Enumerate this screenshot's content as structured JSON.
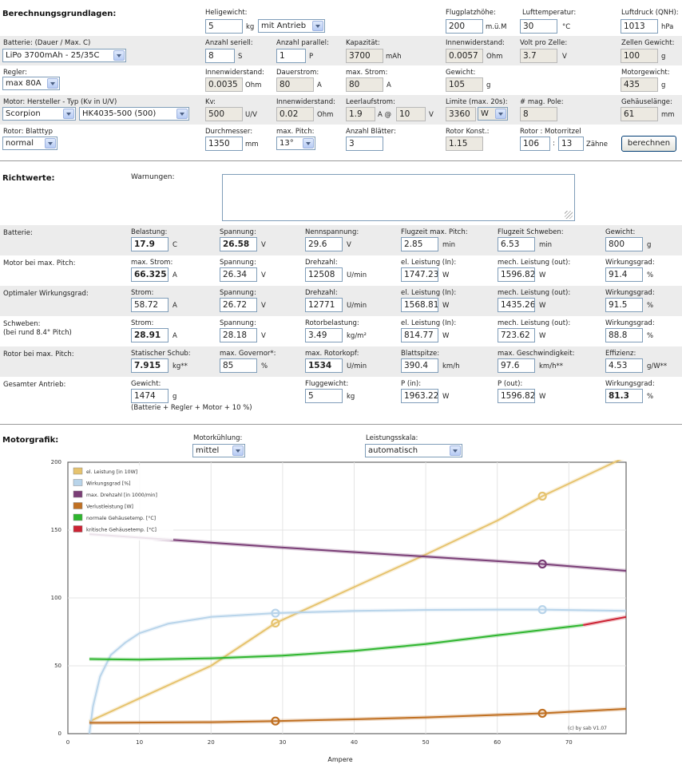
{
  "basics": {
    "title": "Berechnungsgrundlagen:",
    "heligewicht": {
      "label": "Heligewicht:",
      "value": "5",
      "unit": "kg",
      "select": "mit Antrieb"
    },
    "flugplatzhoehe": {
      "label": "Flugplatzhöhe:",
      "value": "200",
      "unit": "m.ü.M"
    },
    "lufttemperatur": {
      "label": "Lufttemperatur:",
      "value": "30",
      "unit": "°C"
    },
    "luftdruck": {
      "label": "Luftdruck (QNH):",
      "value": "1013",
      "unit": "hPa"
    },
    "batterie": {
      "label": "Batterie: (Dauer / Max. C)",
      "select": "LiPo 3700mAh - 25/35C"
    },
    "seriell": {
      "label": "Anzahl seriell:",
      "value": "8",
      "unit": "S"
    },
    "parallel": {
      "label": "Anzahl parallel:",
      "value": "1",
      "unit": "P"
    },
    "kapazitaet": {
      "label": "Kapazität:",
      "value": "3700",
      "unit": "mAh"
    },
    "innenwiderstand_bat": {
      "label": "Innenwiderstand:",
      "value": "0.0057",
      "unit": "Ohm"
    },
    "volt_pro_zelle": {
      "label": "Volt pro Zelle:",
      "value": "3.7",
      "unit": "V"
    },
    "zellen_gewicht": {
      "label": "Zellen Gewicht:",
      "value": "100",
      "unit": "g"
    },
    "regler": {
      "label": "Regler:",
      "select": "max 80A"
    },
    "innenwiderstand_reg": {
      "label": "Innenwiderstand:",
      "value": "0.0035",
      "unit": "Ohm"
    },
    "dauerstrom": {
      "label": "Dauerstrom:",
      "value": "80",
      "unit": "A"
    },
    "max_strom": {
      "label": "max. Strom:",
      "value": "80",
      "unit": "A"
    },
    "regler_gewicht": {
      "label": "Gewicht:",
      "value": "105",
      "unit": "g"
    },
    "motorgewicht": {
      "label": "Motorgewicht:",
      "value": "435",
      "unit": "g"
    },
    "motor": {
      "label": "Motor: Hersteller - Typ (Kv in U/V)",
      "hersteller": "Scorpion",
      "typ": "HK4035-500 (500)"
    },
    "kv": {
      "label": "Kv:",
      "value": "500",
      "unit": "U/V"
    },
    "innenwiderstand_mot": {
      "label": "Innenwiderstand:",
      "value": "0.02",
      "unit": "Ohm"
    },
    "leerlaufstrom": {
      "label": "Leerlaufstrom:",
      "value": "1.9",
      "at": "A @",
      "volt": "10",
      "unit": "V"
    },
    "limite": {
      "label": "Limite (max. 20s):",
      "value": "3360",
      "select": "W"
    },
    "pole": {
      "label": "# mag. Pole:",
      "value": "8"
    },
    "gehaeuselaenge": {
      "label": "Gehäuselänge:",
      "value": "61",
      "unit": "mm"
    },
    "blatttyp": {
      "label": "Rotor: Blatttyp",
      "select": "normal"
    },
    "durchmesser": {
      "label": "Durchmesser:",
      "value": "1350",
      "unit": "mm"
    },
    "max_pitch": {
      "label": "max. Pitch:",
      "select": "13°"
    },
    "anzahl_blaetter": {
      "label": "Anzahl Blätter:",
      "value": "3"
    },
    "rotor_konst": {
      "label": "Rotor Konst.:",
      "value": "1.15"
    },
    "rotor_motorritzel": {
      "label": "Rotor : Motorritzel",
      "rotor": "106",
      "sep": ":",
      "ritzel": "13",
      "unit": "Zähne"
    },
    "berechnen": "berechnen"
  },
  "results": {
    "title": "Richtwerte:",
    "warnungen_label": "Warnungen:",
    "rows": [
      {
        "name": "Batterie:",
        "cells": [
          {
            "label": "Belastung:",
            "value": "17.9",
            "unit": "C",
            "bold": true
          },
          {
            "label": "Spannung:",
            "value": "26.58",
            "unit": "V",
            "bold": true
          },
          {
            "label": "Nennspannung:",
            "value": "29.6",
            "unit": "V"
          },
          {
            "label": "Flugzeit max. Pitch:",
            "value": "2.85",
            "unit": "min"
          },
          {
            "label": "Flugzeit Schweben:",
            "value": "6.53",
            "unit": "min"
          },
          {
            "label": "Gewicht:",
            "value": "800",
            "unit": "g"
          }
        ]
      },
      {
        "name": "Motor bei max. Pitch:",
        "cells": [
          {
            "label": "max. Strom:",
            "value": "66.325",
            "unit": "A",
            "bold": true
          },
          {
            "label": "Spannung:",
            "value": "26.34",
            "unit": "V"
          },
          {
            "label": "Drehzahl:",
            "value": "12508",
            "unit": "U/min"
          },
          {
            "label": "el. Leistung (In):",
            "value": "1747.23",
            "unit": "W"
          },
          {
            "label": "mech. Leistung (out):",
            "value": "1596.82",
            "unit": "W"
          },
          {
            "label": "Wirkungsgrad:",
            "value": "91.4",
            "unit": "%"
          }
        ]
      },
      {
        "name": "Optimaler Wirkungsgrad:",
        "cells": [
          {
            "label": "Strom:",
            "value": "58.72",
            "unit": "A"
          },
          {
            "label": "Spannung:",
            "value": "26.72",
            "unit": "V"
          },
          {
            "label": "Drehzahl:",
            "value": "12771",
            "unit": "U/min"
          },
          {
            "label": "el. Leistung (In):",
            "value": "1568.81",
            "unit": "W"
          },
          {
            "label": "mech. Leistung (out):",
            "value": "1435.26",
            "unit": "W"
          },
          {
            "label": "Wirkungsgrad:",
            "value": "91.5",
            "unit": "%"
          }
        ]
      },
      {
        "name": "Schweben:",
        "sub": "(bei rund 8.4° Pitch)",
        "cells": [
          {
            "label": "Strom:",
            "value": "28.91",
            "unit": "A",
            "bold": true
          },
          {
            "label": "Spannung:",
            "value": "28.18",
            "unit": "V"
          },
          {
            "label": "Rotorbelastung:",
            "value": "3.49",
            "unit": "kg/m²"
          },
          {
            "label": "el. Leistung (In):",
            "value": "814.77",
            "unit": "W"
          },
          {
            "label": "mech. Leistung (out):",
            "value": "723.62",
            "unit": "W"
          },
          {
            "label": "Wirkungsgrad:",
            "value": "88.8",
            "unit": "%"
          }
        ]
      },
      {
        "name": "Rotor bei max. Pitch:",
        "cells": [
          {
            "label": "Statischer Schub:",
            "value": "7.915",
            "unit": "kg**",
            "bold": true
          },
          {
            "label": "max. Governor*:",
            "value": "85",
            "unit": "%"
          },
          {
            "label": "max. Rotorkopf:",
            "value": "1534",
            "unit": "U/min",
            "bold": true
          },
          {
            "label": "Blattspitze:",
            "value": "390.4",
            "unit": "km/h"
          },
          {
            "label": "max. Geschwindigkeit:",
            "value": "97.6",
            "unit": "km/h**"
          },
          {
            "label": "Effizienz:",
            "value": "4.53",
            "unit": "g/W**"
          }
        ]
      },
      {
        "name": "Gesamter Antrieb:",
        "cells": [
          {
            "label": "Gewicht:",
            "value": "1474",
            "unit": "g"
          },
          null,
          {
            "label": "Fluggewicht:",
            "value": "5",
            "unit": "kg"
          },
          {
            "label": "P (in):",
            "value": "1963.22",
            "unit": "W"
          },
          {
            "label": "P (out):",
            "value": "1596.82",
            "unit": "W"
          },
          {
            "label": "Wirkungsgrad:",
            "value": "81.3",
            "unit": "%",
            "bold": true
          }
        ]
      }
    ],
    "gewicht_note": "(Batterie + Regler + Motor + 10 %)"
  },
  "motorgrafik": {
    "title": "Motorgrafik:",
    "kuehlung": {
      "label": "Motorkühlung:",
      "select": "mittel"
    },
    "skala": {
      "label": "Leistungsskala:",
      "select": "automatisch"
    }
  },
  "chart_data": {
    "type": "line",
    "xlabel": "Ampere",
    "xlim": [
      0,
      78
    ],
    "ylim": [
      0,
      200
    ],
    "xticks": [
      0,
      10,
      20,
      30,
      40,
      50,
      60,
      70
    ],
    "yticks": [
      0,
      50,
      100,
      150,
      200
    ],
    "credit": "(c) by sab   V1.07",
    "series": [
      {
        "name": "el. Leistung [in 10W]",
        "color": "#e6c36e",
        "x": [
          3,
          10,
          20,
          29,
          40,
          50,
          60,
          66.3,
          78
        ],
        "y": [
          9,
          26,
          50,
          81.5,
          108,
          132,
          157,
          175,
          204
        ],
        "markers": [
          [
            29,
            81.5
          ],
          [
            66.3,
            175
          ]
        ]
      },
      {
        "name": "Wirkungsgrad [%]",
        "color": "#b8d4ea",
        "x": [
          3,
          3.5,
          4.5,
          6,
          8,
          10,
          14,
          20,
          29,
          40,
          50,
          60,
          66.3,
          78
        ],
        "y": [
          0,
          20,
          42,
          58,
          67,
          74,
          81,
          86,
          88.8,
          90.5,
          91.2,
          91.4,
          91.4,
          90.5
        ],
        "markers": [
          [
            29,
            88.8
          ],
          [
            66.3,
            91.4
          ]
        ]
      },
      {
        "name": "max. Drehzahl [in 1000/min]",
        "color": "#7a3e76",
        "x": [
          3,
          29,
          66.3,
          78
        ],
        "y": [
          147,
          137.5,
          125,
          120
        ],
        "markers": [
          [
            66.3,
            125
          ]
        ]
      },
      {
        "name": "Verlustleistung [W]",
        "color": "#c07022",
        "x": [
          3,
          20,
          29,
          40,
          50,
          60,
          66.3,
          78
        ],
        "y": [
          8,
          8.5,
          9.3,
          10.6,
          12,
          13.8,
          15,
          18.3
        ],
        "markers": [
          [
            29,
            9.3
          ],
          [
            66.3,
            15
          ]
        ]
      },
      {
        "name": "normale Gehäusetemp. [°C]",
        "color": "#2eb52e",
        "x": [
          3,
          10,
          20,
          30,
          40,
          50,
          60,
          72
        ],
        "y": [
          55,
          54.5,
          55.5,
          57.5,
          61,
          66,
          72.5,
          80
        ]
      },
      {
        "name": "kritische Gehäusetemp. [°C]",
        "color": "#cc2233",
        "x": [
          72,
          78
        ],
        "y": [
          80,
          86
        ]
      }
    ]
  }
}
